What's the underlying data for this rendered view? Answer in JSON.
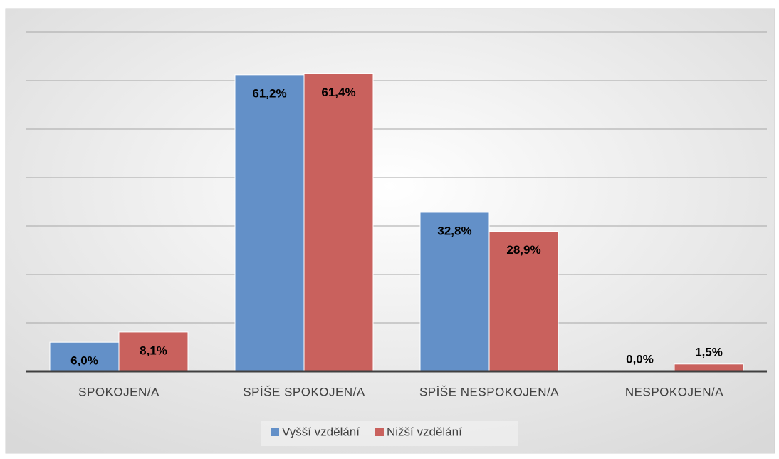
{
  "chart_data": {
    "type": "bar",
    "categories": [
      "SPOKOJEN/A",
      "SPÍŠE SPOKOJEN/A",
      "SPÍŠE NESPOKOJEN/A",
      "NESPOKOJEN/A"
    ],
    "series": [
      {
        "name": "Vyšší vzdělání",
        "color": "#6390c8",
        "values": [
          6.0,
          61.2,
          32.8,
          0.0
        ],
        "value_labels": [
          "6,0%",
          "61,2%",
          "32,8%",
          "0,0%"
        ]
      },
      {
        "name": "Nižší vzdělání",
        "color": "#c9615d",
        "values": [
          8.1,
          61.4,
          28.9,
          1.5
        ],
        "value_labels": [
          "8,1%",
          "61,4%",
          "28,9%",
          "1,5%"
        ]
      }
    ],
    "ylim": [
      0,
      70
    ],
    "yticks": [
      0,
      10,
      20,
      30,
      40,
      50,
      60,
      70
    ],
    "grid": true,
    "legend": "bottom"
  }
}
